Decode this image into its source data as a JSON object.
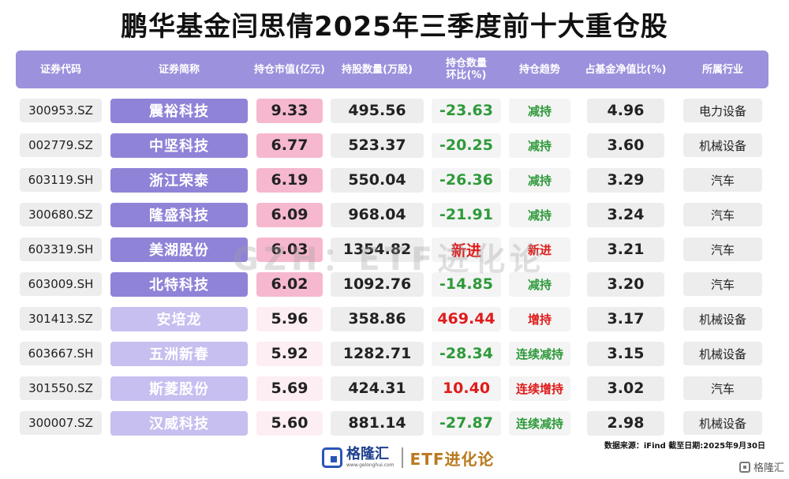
{
  "title": "鹏华基金闫思倩2025年三季度前十大重仓股",
  "headers": [
    "证券代码",
    "证券简称",
    "持仓市值(亿元)",
    "持股数量(万股)",
    "持仓数量环比(%)",
    "持仓趋势",
    "占基金净值比(%)",
    "所属行业"
  ],
  "colors": {
    "header_bg": "#9b91dc",
    "name_bg_dark": "#8f83d8",
    "name_bg_light": "#c6bff0",
    "mv_bg_strong": "#f6b8cf",
    "mv_bg_light": "#fdeef3",
    "green": "#2e9a3a",
    "red": "#e01b1b"
  },
  "rows": [
    {
      "code": "300953.SZ",
      "name": "震裕科技",
      "market_value": "9.33",
      "shares": "495.56",
      "change": "-23.63",
      "change_color": "green",
      "trend": "减持",
      "trend_color": "green",
      "nav": "4.96",
      "industry": "电力设备"
    },
    {
      "code": "002779.SZ",
      "name": "中坚科技",
      "market_value": "6.77",
      "shares": "523.37",
      "change": "-20.25",
      "change_color": "green",
      "trend": "减持",
      "trend_color": "green",
      "nav": "3.60",
      "industry": "机械设备"
    },
    {
      "code": "603119.SH",
      "name": "浙江荣泰",
      "market_value": "6.19",
      "shares": "550.04",
      "change": "-26.36",
      "change_color": "green",
      "trend": "减持",
      "trend_color": "green",
      "nav": "3.29",
      "industry": "汽车"
    },
    {
      "code": "300680.SZ",
      "name": "隆盛科技",
      "market_value": "6.09",
      "shares": "968.04",
      "change": "-21.91",
      "change_color": "green",
      "trend": "减持",
      "trend_color": "green",
      "nav": "3.24",
      "industry": "汽车"
    },
    {
      "code": "603319.SH",
      "name": "美湖股份",
      "market_value": "6.03",
      "shares": "1354.82",
      "change": "新进",
      "change_color": "red",
      "trend": "新进",
      "trend_color": "red",
      "nav": "3.21",
      "industry": "汽车"
    },
    {
      "code": "603009.SH",
      "name": "北特科技",
      "market_value": "6.02",
      "shares": "1092.76",
      "change": "-14.85",
      "change_color": "green",
      "trend": "减持",
      "trend_color": "green",
      "nav": "3.20",
      "industry": "汽车"
    },
    {
      "code": "301413.SZ",
      "name": "安培龙",
      "market_value": "5.96",
      "shares": "358.86",
      "change": "469.44",
      "change_color": "red",
      "trend": "增持",
      "trend_color": "red",
      "nav": "3.17",
      "industry": "机械设备"
    },
    {
      "code": "603667.SH",
      "name": "五洲新春",
      "market_value": "5.92",
      "shares": "1282.71",
      "change": "-28.34",
      "change_color": "green",
      "trend": "连续减持",
      "trend_color": "green",
      "nav": "3.15",
      "industry": "机械设备"
    },
    {
      "code": "301550.SZ",
      "name": "斯菱股份",
      "market_value": "5.69",
      "shares": "424.31",
      "change": "10.40",
      "change_color": "red",
      "trend": "连续增持",
      "trend_color": "red",
      "nav": "3.02",
      "industry": "汽车"
    },
    {
      "code": "300007.SZ",
      "name": "汉威科技",
      "market_value": "5.60",
      "shares": "881.14",
      "change": "-27.87",
      "change_color": "green",
      "trend": "连续减持",
      "trend_color": "green",
      "nav": "2.98",
      "industry": "机械设备"
    }
  ],
  "source_note": "数据来源：iFind 截至日期:2025年9月30日",
  "watermark": "GZH：ETF进化论",
  "footer": {
    "logo_text": "格隆汇",
    "logo_sub": "www.gelonghui.com",
    "right_text": "ETF进化论"
  },
  "corner_label": "格隆汇"
}
